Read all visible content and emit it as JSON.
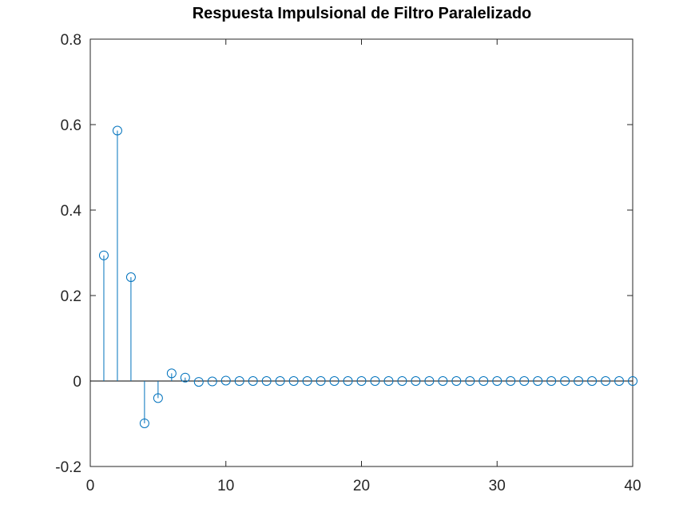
{
  "chart_data": {
    "type": "stem",
    "title": "Respuesta Impulsional de Filtro Paralelizado",
    "xlabel": "",
    "ylabel": "",
    "xlim": [
      0,
      40
    ],
    "ylim": [
      -0.2,
      0.8
    ],
    "xticks": [
      0,
      10,
      20,
      30,
      40
    ],
    "xtick_labels": [
      "0",
      "10",
      "20",
      "30",
      "40"
    ],
    "yticks": [
      -0.2,
      0,
      0.2,
      0.4,
      0.6,
      0.8
    ],
    "ytick_labels": [
      "-0.2",
      "0",
      "0.2",
      "0.4",
      "0.6",
      "0.8"
    ],
    "grid": false,
    "series": [
      {
        "color": "#0072bd",
        "marker": "circle-open",
        "baseline": 0,
        "x": [
          1,
          2,
          3,
          4,
          5,
          6,
          7,
          8,
          9,
          10,
          11,
          12,
          13,
          14,
          15,
          16,
          17,
          18,
          19,
          20,
          21,
          22,
          23,
          24,
          25,
          26,
          27,
          28,
          29,
          30,
          31,
          32,
          33,
          34,
          35,
          36,
          37,
          38,
          39,
          40
        ],
        "values": [
          0.294,
          0.586,
          0.243,
          -0.099,
          -0.04,
          0.018,
          0.008,
          -0.002,
          -0.001,
          0.001,
          0,
          0,
          0,
          0,
          0,
          0,
          0,
          0,
          0,
          0,
          0,
          0,
          0,
          0,
          0,
          0,
          0,
          0,
          0,
          0,
          0,
          0,
          0,
          0,
          0,
          0,
          0,
          0,
          0,
          0
        ]
      }
    ]
  }
}
